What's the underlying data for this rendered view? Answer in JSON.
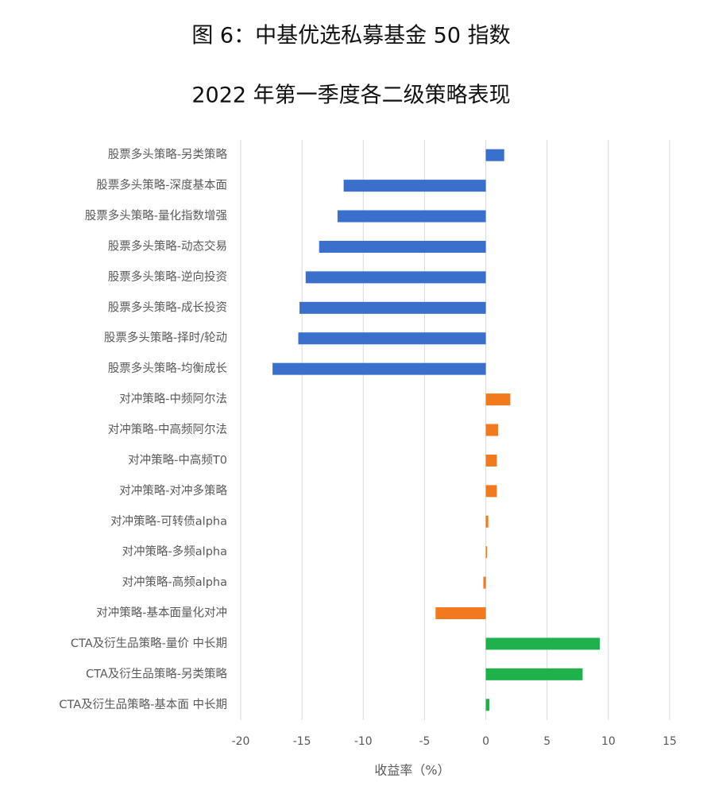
{
  "chart_data": {
    "type": "barh",
    "title": "图 6：中基优选私募基金 50 指数",
    "subtitle": "2022 年第一季度各二级策略表现",
    "xlabel": "收益率（%）",
    "categories": [
      "股票多头策略-另类策略",
      "股票多头策略-深度基本面",
      "股票多头策略-量化指数增强",
      "股票多头策略-动态交易",
      "股票多头策略-逆向投资",
      "股票多头策略-成长投资",
      "股票多头策略-择时/轮动",
      "股票多头策略-均衡成长",
      "对冲策略-中频阿尔法",
      "对冲策略-中高频阿尔法",
      "对冲策略-中高频T0",
      "对冲策略-对冲多策略",
      "对冲策略-可转债alpha",
      "对冲策略-多频alpha",
      "对冲策略-高频alpha",
      "对冲策略-基本面量化对冲",
      "CTA及衍生品策略-量价 中长期",
      "CTA及衍生品策略-另类策略",
      "CTA及衍生品策略-基本面 中长期"
    ],
    "values": [
      1.5,
      -11.6,
      -12.1,
      -13.6,
      -14.7,
      -15.2,
      -15.3,
      -17.4,
      2.0,
      1.0,
      0.9,
      0.9,
      0.2,
      0.1,
      -0.2,
      -4.1,
      9.3,
      7.9,
      0.3
    ],
    "colors": [
      "#3a70cc",
      "#3a70cc",
      "#3a70cc",
      "#3a70cc",
      "#3a70cc",
      "#3a70cc",
      "#3a70cc",
      "#3a70cc",
      "#f27a1e",
      "#f27a1e",
      "#f27a1e",
      "#f27a1e",
      "#f27a1e",
      "#f27a1e",
      "#f27a1e",
      "#f27a1e",
      "#1fb14b",
      "#1fb14b",
      "#1fb14b"
    ],
    "xlim": [
      -20,
      15
    ],
    "xticks": [
      -20,
      -15,
      -10,
      -5,
      0,
      5,
      10,
      15
    ],
    "grid": true
  }
}
